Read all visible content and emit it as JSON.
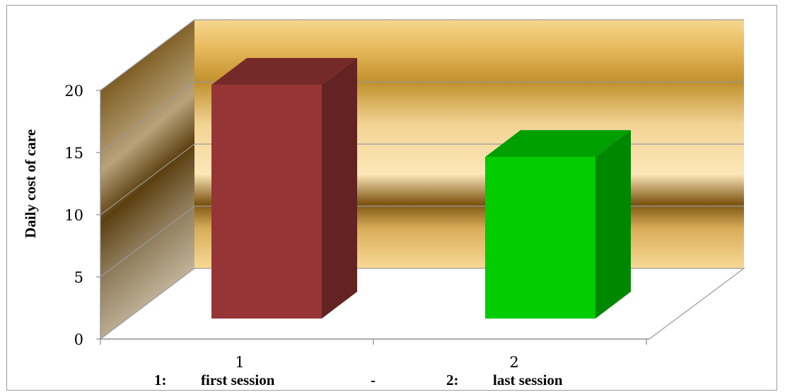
{
  "chart_data": {
    "type": "bar",
    "categories": [
      "1",
      "2"
    ],
    "values": [
      19.5,
      13.7
    ],
    "colors": [
      "#963535",
      "#00cc00"
    ],
    "ylabel": "Daily cost of care",
    "ylim": [
      0,
      20
    ],
    "yticks": [
      "0",
      "5",
      "10",
      "15",
      "20"
    ],
    "grid": true,
    "legend": "none",
    "caption": {
      "item1_key": "1:",
      "item1_text": "first session",
      "separator": "-",
      "item2_key": "2:",
      "item2_text": "last session"
    }
  }
}
